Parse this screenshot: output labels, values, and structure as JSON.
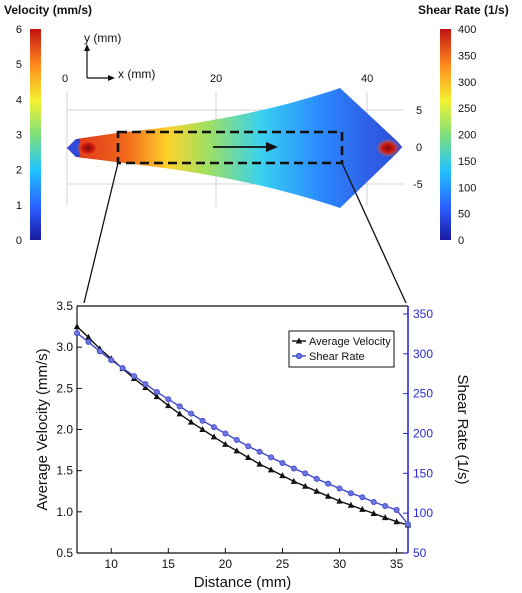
{
  "top_panel": {
    "velocity_colorbar": {
      "title": "Velocity (mm/s)",
      "ticks": [
        "0",
        "1",
        "2",
        "3",
        "4",
        "5",
        "6"
      ]
    },
    "shear_colorbar": {
      "title": "Shear Rate (1/s)",
      "ticks": [
        "0",
        "50",
        "100",
        "150",
        "200",
        "250",
        "300",
        "350",
        "400"
      ]
    },
    "axes_legend": {
      "y_label": "y (mm)",
      "x_label": "x (mm)"
    },
    "x_ticks": [
      "0",
      "20",
      "40"
    ],
    "y_ticks": [
      "5",
      "0",
      "-5"
    ]
  },
  "chart_data": {
    "type": "line",
    "xlabel": "Distance (mm)",
    "ylabel": "Average Velocity (mm/s)",
    "ylabel_right": "Shear Rate (1/s)",
    "xlim": [
      7,
      36
    ],
    "ylim": [
      0.5,
      3.5
    ],
    "ylim_right": [
      50,
      360
    ],
    "x_ticks": [
      "10",
      "15",
      "20",
      "25",
      "30",
      "35"
    ],
    "y_ticks": [
      "0.5",
      "1.0",
      "1.5",
      "2.0",
      "2.5",
      "3.0",
      "3.5"
    ],
    "y_right_ticks": [
      "50",
      "100",
      "150",
      "200",
      "250",
      "300",
      "350"
    ],
    "legend": {
      "placement": "top-right"
    },
    "colors": {
      "velocity": "#111111",
      "shear": "#3f48cc",
      "right_axis": "#2a2ad8"
    },
    "series": [
      {
        "name": "Average Velocity",
        "axis": "left",
        "marker": "triangle",
        "x": [
          7,
          8,
          9,
          10,
          11,
          12,
          13,
          14,
          15,
          16,
          17,
          18,
          19,
          20,
          21,
          22,
          23,
          24,
          25,
          26,
          27,
          28,
          29,
          30,
          31,
          32,
          33,
          34,
          35,
          36
        ],
        "values": [
          3.25,
          3.12,
          2.98,
          2.86,
          2.74,
          2.62,
          2.51,
          2.4,
          2.29,
          2.19,
          2.09,
          2.0,
          1.91,
          1.82,
          1.74,
          1.66,
          1.58,
          1.51,
          1.44,
          1.37,
          1.31,
          1.25,
          1.19,
          1.13,
          1.08,
          1.03,
          0.98,
          0.93,
          0.88,
          0.84
        ]
      },
      {
        "name": "Shear Rate",
        "axis": "right",
        "marker": "circle",
        "x": [
          7,
          8,
          9,
          10,
          11,
          12,
          13,
          14,
          15,
          16,
          17,
          18,
          19,
          20,
          21,
          22,
          23,
          24,
          25,
          26,
          27,
          28,
          29,
          30,
          31,
          32,
          33,
          34,
          35,
          36
        ],
        "values": [
          326,
          315,
          303,
          292,
          282,
          272,
          262,
          252,
          243,
          234,
          225,
          216,
          208,
          200,
          192,
          184,
          177,
          170,
          163,
          156,
          150,
          143,
          137,
          131,
          125,
          120,
          114,
          109,
          104,
          86
        ]
      }
    ]
  }
}
